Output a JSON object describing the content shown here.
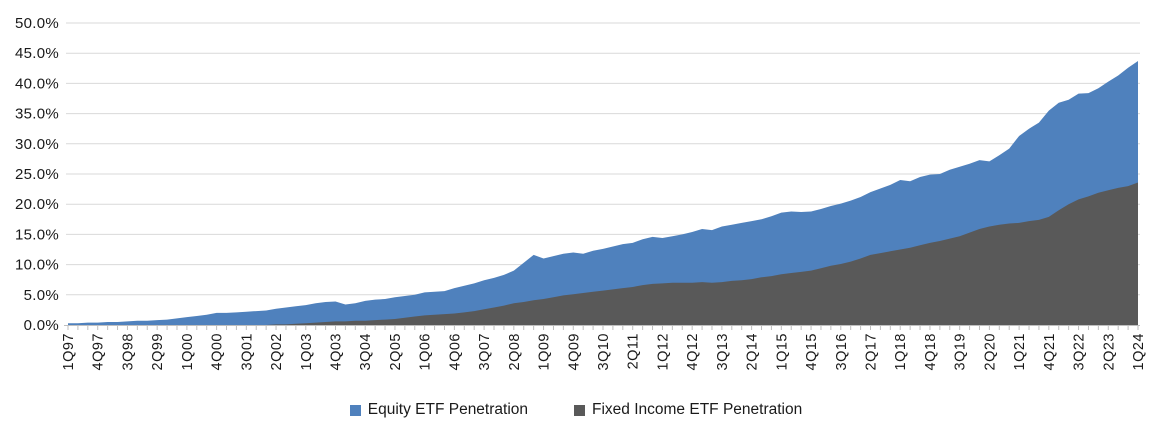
{
  "chart_data": {
    "type": "area",
    "title": "",
    "mode": "overlay",
    "grid": true,
    "legend_position": "bottom",
    "ylim": [
      0,
      50
    ],
    "y_step": 5,
    "y_ticks": [
      "0.0%",
      "5.0%",
      "10.0%",
      "15.0%",
      "20.0%",
      "25.0%",
      "30.0%",
      "35.0%",
      "40.0%",
      "45.0%",
      "50.0%"
    ],
    "x_tick_every": 3,
    "x_tick_labels": [
      "1Q97",
      "4Q97",
      "3Q98",
      "2Q99",
      "1Q00",
      "4Q00",
      "3Q01",
      "2Q02",
      "1Q03",
      "4Q03",
      "3Q04",
      "2Q05",
      "1Q06",
      "4Q06",
      "3Q07",
      "2Q08",
      "1Q09",
      "4Q09",
      "3Q10",
      "2Q11",
      "1Q12",
      "4Q12",
      "3Q13",
      "2Q14",
      "1Q15",
      "4Q15",
      "3Q16",
      "2Q17",
      "1Q18",
      "4Q18",
      "3Q19",
      "2Q20",
      "1Q21",
      "4Q21",
      "3Q22",
      "2Q23",
      "1Q24"
    ],
    "x_frequency": "quarterly",
    "series": [
      {
        "name": "Equity ETF Penetration",
        "color": "#4F81BD",
        "values": [
          0.3,
          0.3,
          0.4,
          0.4,
          0.5,
          0.5,
          0.6,
          0.7,
          0.7,
          0.8,
          0.9,
          1.1,
          1.3,
          1.5,
          1.7,
          2.0,
          2.0,
          2.1,
          2.2,
          2.3,
          2.4,
          2.7,
          2.9,
          3.1,
          3.3,
          3.6,
          3.8,
          3.9,
          3.4,
          3.6,
          4.0,
          4.2,
          4.3,
          4.6,
          4.8,
          5.0,
          5.4,
          5.5,
          5.6,
          6.1,
          6.5,
          6.9,
          7.4,
          7.8,
          8.3,
          9.0,
          10.3,
          11.6,
          11.0,
          11.4,
          11.8,
          12.0,
          11.8,
          12.3,
          12.6,
          13.0,
          13.4,
          13.6,
          14.2,
          14.6,
          14.4,
          14.7,
          15.0,
          15.4,
          15.9,
          15.7,
          16.3,
          16.6,
          16.9,
          17.2,
          17.5,
          18.0,
          18.6,
          18.8,
          18.7,
          18.8,
          19.2,
          19.7,
          20.1,
          20.6,
          21.2,
          22.0,
          22.6,
          23.2,
          24.0,
          23.8,
          24.5,
          24.9,
          25.0,
          25.7,
          26.2,
          26.7,
          27.3,
          27.1,
          28.1,
          29.2,
          31.3,
          32.5,
          33.5,
          35.5,
          36.8,
          37.3,
          38.3,
          38.4,
          39.2,
          40.3,
          41.3,
          42.6,
          43.7
        ]
      },
      {
        "name": "Fixed Income ETF Penetration",
        "color": "#595959",
        "values": [
          0,
          0,
          0,
          0,
          0,
          0,
          0,
          0,
          0,
          0,
          0,
          0,
          0,
          0,
          0,
          0,
          0,
          0,
          0,
          0,
          0,
          0.1,
          0.1,
          0.2,
          0.3,
          0.4,
          0.5,
          0.6,
          0.6,
          0.7,
          0.7,
          0.8,
          0.9,
          1.0,
          1.2,
          1.4,
          1.6,
          1.7,
          1.8,
          1.9,
          2.1,
          2.3,
          2.6,
          2.9,
          3.2,
          3.6,
          3.8,
          4.1,
          4.3,
          4.6,
          4.9,
          5.1,
          5.3,
          5.5,
          5.7,
          5.9,
          6.1,
          6.3,
          6.6,
          6.8,
          6.9,
          7.0,
          7.0,
          7.0,
          7.1,
          7.0,
          7.1,
          7.3,
          7.4,
          7.6,
          7.9,
          8.1,
          8.4,
          8.6,
          8.8,
          9.0,
          9.4,
          9.8,
          10.1,
          10.5,
          11.0,
          11.6,
          11.9,
          12.2,
          12.5,
          12.8,
          13.2,
          13.6,
          13.9,
          14.3,
          14.7,
          15.3,
          15.9,
          16.3,
          16.6,
          16.8,
          16.9,
          17.2,
          17.4,
          17.9,
          19.0,
          20.0,
          20.8,
          21.3,
          21.9,
          22.3,
          22.7,
          23.0,
          23.6
        ]
      }
    ]
  },
  "colors": {
    "background": "#FFFFFF",
    "text": "#1A1A1A",
    "gridline": "#D9D9D9",
    "axis": "#BFBFBF"
  }
}
